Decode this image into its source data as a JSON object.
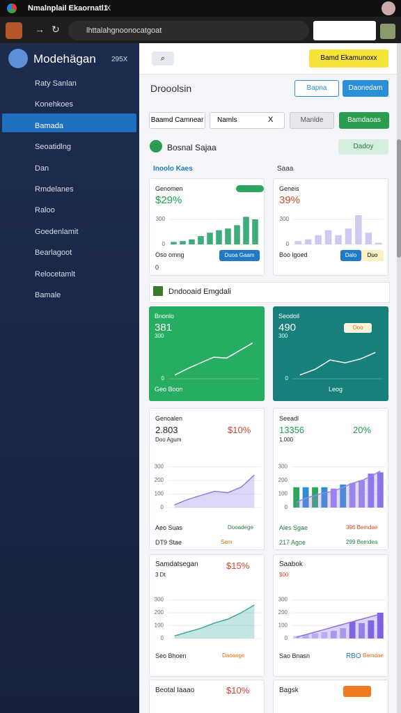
{
  "browser": {
    "tab_title": "Nmalnplail Ekaornatl1",
    "tab_close": "X",
    "url": "lhttalahgnoonocatgoat"
  },
  "sidebar": {
    "brand": "Modehägan",
    "badge": "295X",
    "items": [
      "Raty Sanlan",
      "Konehkoes",
      "Bamada",
      "Seoatidlng",
      "Dan",
      "Rmdelanes",
      "Raloo",
      "Goedenlamit",
      "Bearlagoot",
      "Relocetamlt",
      "Bamale"
    ]
  },
  "topbar": {
    "button": "Bamd Ekamunoxx"
  },
  "header": {
    "title": "Drooolsin",
    "buttons": [
      "Bapna",
      "Daonedam"
    ]
  },
  "filters": {
    "inputs": [
      "Baamd Camnear",
      "Namls"
    ],
    "clear": "X",
    "buttons": [
      "Manlde",
      "Bamdaoas"
    ]
  },
  "sections": [
    {
      "title": "Bosnal Sajaa",
      "action": "Dadoy"
    },
    {
      "title": "Dndooaid Emgdali"
    }
  ],
  "card_labels": [
    "Inoolo Kaes",
    "Saaa"
  ],
  "cards": [
    {
      "title": "Genomen",
      "value": "$29%",
      "footer": "Oso omng",
      "note": "0",
      "button": "Duoa Gaam",
      "chart": {
        "type": "bar",
        "color": "#3dae7a",
        "ylim": [
          0,
          400
        ],
        "yticks": [
          0,
          300
        ],
        "values": [
          30,
          40,
          60,
          100,
          140,
          170,
          190,
          230,
          330,
          300
        ]
      }
    },
    {
      "title": "Geneis",
      "value": "39%",
      "footer": "Boo lgoed",
      "buttons": [
        "Dalo",
        "Duo"
      ],
      "chart": {
        "type": "bar",
        "color": "#cfc9f2",
        "ylim": [
          0,
          400
        ],
        "yticks": [
          0,
          300
        ],
        "values": [
          40,
          60,
          110,
          170,
          110,
          190,
          350,
          140,
          20
        ]
      }
    },
    {
      "title": "Bnonlo",
      "value": "381",
      "sub": "300",
      "footer": "Geo Boon",
      "chart": {
        "type": "line",
        "color": "#ffffff",
        "ylim": [
          0,
          400
        ],
        "yticks": [
          0
        ],
        "values": [
          40,
          110,
          170,
          230,
          220,
          300,
          380
        ]
      }
    },
    {
      "title": "Seodoil",
      "value": "490",
      "sub": "300",
      "badge": "Ooo",
      "footer": "Leog",
      "chart": {
        "type": "line",
        "color": "#ffffff",
        "ylim": [
          0,
          400
        ],
        "yticks": [
          0
        ],
        "values": [
          40,
          100,
          200,
          170,
          210,
          280
        ]
      }
    },
    {
      "title": "Genoalen",
      "value": "2.803",
      "change": "$10%",
      "sub": "Doo Agum",
      "rows": [
        [
          "Aeo Suas",
          "Dooadege"
        ],
        [
          "DT9 Stae",
          "Sem"
        ]
      ],
      "chart": {
        "type": "area",
        "color": "#8f7fe0",
        "ylim": [
          0,
          400
        ],
        "yticks": [
          0,
          100,
          200,
          300
        ],
        "values": [
          20,
          60,
          90,
          120,
          110,
          150,
          240
        ]
      }
    },
    {
      "title": "Seeadl",
      "value": "13356",
      "change": "20%",
      "sub": "1.000",
      "rows": [
        [
          "Ales Sgae",
          "396 Bemdae"
        ],
        [
          "217 Agoe",
          "299 Bemdea"
        ]
      ],
      "chart": {
        "type": "combo",
        "color": "#9a86ea",
        "colors": [
          "#2ba55f",
          "#2c8fd1",
          "#2ba55f",
          "#2c8fd1",
          "#9a86ea",
          "#2c8fd1",
          "#9a86ea",
          "#9a86ea",
          "#8a72e6",
          "#8a72e6"
        ],
        "ylim": [
          0,
          400
        ],
        "yticks": [
          0,
          100,
          200,
          300
        ],
        "values": [
          150,
          150,
          150,
          150,
          140,
          170,
          180,
          200,
          250,
          260
        ],
        "area_values": [
          40,
          70,
          90,
          110,
          120,
          150,
          180,
          200,
          230,
          270
        ]
      }
    },
    {
      "title": "Samdatsegan",
      "change": "$15%",
      "sub": "3 Dt",
      "rows": [
        [
          "Seo Bhoen",
          "Daoaege"
        ]
      ],
      "chart": {
        "type": "area",
        "color": "#3aa99b",
        "ylim": [
          0,
          400
        ],
        "yticks": [
          0,
          100,
          200,
          300
        ],
        "values": [
          20,
          50,
          80,
          120,
          150,
          200,
          260
        ]
      }
    },
    {
      "title": "Saabok",
      "change": "$00",
      "rows": [
        [
          "Sao Bnasn",
          "RBO",
          "Bemdae"
        ]
      ],
      "chart": {
        "type": "combo",
        "color": "#8a72e6",
        "colors": [
          "#cfc6f4",
          "#cfc6f4",
          "#cfc6f4",
          "#cfc6f4",
          "#b9aaf0",
          "#b9aaf0",
          "#7b5fe0",
          "#9a86ea",
          "#7b5fe0",
          "#7b5fe0"
        ],
        "ylim": [
          0,
          400
        ],
        "yticks": [
          0,
          100,
          200,
          300
        ],
        "values": [
          20,
          30,
          40,
          50,
          60,
          80,
          130,
          120,
          140,
          200
        ],
        "area_values": [
          10,
          30,
          50,
          70,
          90,
          110,
          130,
          150,
          170,
          190
        ]
      }
    },
    {
      "title": "Beotal Iaaao",
      "change": "$10%"
    },
    {
      "title": "Bagsk"
    }
  ]
}
